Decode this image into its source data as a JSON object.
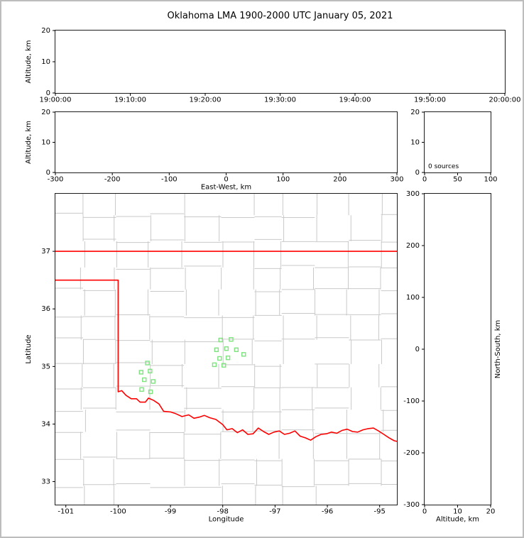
{
  "title": "Oklahoma LMA 1900-2000 UTC January 05, 2021",
  "colors": {
    "state_border": "#ff0000",
    "county_line": "#c9c9c9",
    "station": "#7ee37e",
    "axis": "#000000",
    "frame": "#bdbdbd"
  },
  "chart_data": [
    {
      "id": "time-altitude",
      "type": "scatter",
      "xlabel": "",
      "ylabel": "Altitude, km",
      "xlim": [
        0,
        6
      ],
      "ylim": [
        0,
        20
      ],
      "xtick_values": [
        0,
        1,
        2,
        3,
        4,
        5,
        6
      ],
      "xtick_labels": [
        "19:00:00",
        "19:10:00",
        "19:20:00",
        "19:30:00",
        "19:40:00",
        "19:50:00",
        "20:00:00"
      ],
      "ytick_values": [
        0,
        10,
        20
      ],
      "ytick_labels": [
        "0",
        "10",
        "20"
      ],
      "points": []
    },
    {
      "id": "ew-altitude",
      "type": "scatter",
      "xlabel": "East-West, km",
      "ylabel": "Altitude, km",
      "xlim": [
        -300,
        300
      ],
      "ylim": [
        0,
        20
      ],
      "xtick_values": [
        -300,
        -200,
        -100,
        0,
        100,
        200,
        300
      ],
      "xtick_labels": [
        "-300",
        "-200",
        "-100",
        "0",
        "100",
        "200",
        "300"
      ],
      "ytick_values": [
        0,
        10,
        20
      ],
      "ytick_labels": [
        "0",
        "10",
        "20"
      ],
      "points": []
    },
    {
      "id": "source-histogram",
      "type": "line",
      "annotation": "0 sources",
      "xlabel": "",
      "ylabel": "",
      "xlim": [
        0,
        100
      ],
      "ylim": [
        0,
        20
      ],
      "xtick_values": [
        0,
        50,
        100
      ],
      "xtick_labels": [
        "0",
        "50",
        "100"
      ],
      "ytick_values": [
        0,
        10,
        20
      ],
      "ytick_labels": [
        "0",
        "10",
        "20"
      ],
      "points": []
    },
    {
      "id": "plan-view-map",
      "type": "scatter",
      "xlabel": "Longitude",
      "ylabel": "Latitude",
      "xlim": [
        -101.2,
        -94.67
      ],
      "ylim": [
        32.6,
        38.0
      ],
      "xtick_values": [
        -101,
        -100,
        -99,
        -98,
        -97,
        -96,
        -95
      ],
      "xtick_labels": [
        "-101",
        "-100",
        "-99",
        "-98",
        "-97",
        "-96",
        "-95"
      ],
      "ytick_values": [
        33,
        34,
        35,
        36,
        37
      ],
      "ytick_labels": [
        "33",
        "34",
        "35",
        "36",
        "37"
      ],
      "county_grid": true,
      "stations_lonlat": [
        [
          -98.04,
          35.46
        ],
        [
          -97.84,
          35.47
        ],
        [
          -98.12,
          35.29
        ],
        [
          -97.93,
          35.31
        ],
        [
          -97.74,
          35.29
        ],
        [
          -98.06,
          35.14
        ],
        [
          -97.9,
          35.15
        ],
        [
          -98.16,
          35.03
        ],
        [
          -97.98,
          35.02
        ],
        [
          -97.6,
          35.21
        ],
        [
          -99.44,
          35.06
        ],
        [
          -99.56,
          34.9
        ],
        [
          -99.39,
          34.92
        ],
        [
          -99.5,
          34.77
        ],
        [
          -99.33,
          34.74
        ],
        [
          -99.55,
          34.6
        ],
        [
          -99.38,
          34.56
        ]
      ],
      "state_border_lonlat": [
        [
          [
            -101.2,
            37.0
          ],
          [
            -94.67,
            37.0
          ]
        ],
        [
          [
            -101.2,
            36.5
          ],
          [
            -100.0,
            36.5
          ],
          [
            -100.0,
            34.56
          ],
          [
            -99.93,
            34.58
          ],
          [
            -99.85,
            34.5
          ],
          [
            -99.75,
            34.44
          ],
          [
            -99.65,
            34.44
          ],
          [
            -99.58,
            34.38
          ],
          [
            -99.48,
            34.38
          ],
          [
            -99.42,
            34.45
          ],
          [
            -99.32,
            34.41
          ],
          [
            -99.22,
            34.35
          ],
          [
            -99.13,
            34.22
          ],
          [
            -99.0,
            34.21
          ],
          [
            -98.9,
            34.18
          ],
          [
            -98.78,
            34.13
          ],
          [
            -98.65,
            34.16
          ],
          [
            -98.55,
            34.1
          ],
          [
            -98.45,
            34.12
          ],
          [
            -98.35,
            34.15
          ],
          [
            -98.25,
            34.11
          ],
          [
            -98.13,
            34.08
          ],
          [
            -98.0,
            33.99
          ],
          [
            -97.92,
            33.9
          ],
          [
            -97.82,
            33.92
          ],
          [
            -97.72,
            33.85
          ],
          [
            -97.62,
            33.9
          ],
          [
            -97.52,
            33.82
          ],
          [
            -97.42,
            33.83
          ],
          [
            -97.32,
            33.93
          ],
          [
            -97.22,
            33.87
          ],
          [
            -97.12,
            33.82
          ],
          [
            -97.02,
            33.86
          ],
          [
            -96.92,
            33.88
          ],
          [
            -96.82,
            33.82
          ],
          [
            -96.72,
            33.84
          ],
          [
            -96.62,
            33.88
          ],
          [
            -96.52,
            33.79
          ],
          [
            -96.42,
            33.76
          ],
          [
            -96.32,
            33.72
          ],
          [
            -96.22,
            33.78
          ],
          [
            -96.12,
            33.82
          ],
          [
            -96.02,
            33.83
          ],
          [
            -95.92,
            33.86
          ],
          [
            -95.82,
            33.84
          ],
          [
            -95.72,
            33.89
          ],
          [
            -95.62,
            33.91
          ],
          [
            -95.52,
            33.87
          ],
          [
            -95.42,
            33.86
          ],
          [
            -95.32,
            33.9
          ],
          [
            -95.22,
            33.92
          ],
          [
            -95.12,
            33.93
          ],
          [
            -95.02,
            33.88
          ],
          [
            -94.92,
            33.82
          ],
          [
            -94.82,
            33.76
          ],
          [
            -94.72,
            33.71
          ],
          [
            -94.67,
            33.7
          ]
        ]
      ]
    },
    {
      "id": "altitude-ns",
      "type": "scatter",
      "xlabel": "Altitude, km",
      "ylabel": "",
      "ylabel_right": "North-South, km",
      "xlim": [
        0,
        20
      ],
      "ylim": [
        -300,
        300
      ],
      "xtick_values": [
        0,
        10,
        20
      ],
      "xtick_labels": [
        "0",
        "10",
        "20"
      ],
      "ytick_values": [
        -300,
        -200,
        -100,
        0,
        100,
        200,
        300
      ],
      "ytick_labels": [
        "-300",
        "-200",
        "-100",
        "0",
        "100",
        "200",
        "300"
      ],
      "points": []
    }
  ]
}
